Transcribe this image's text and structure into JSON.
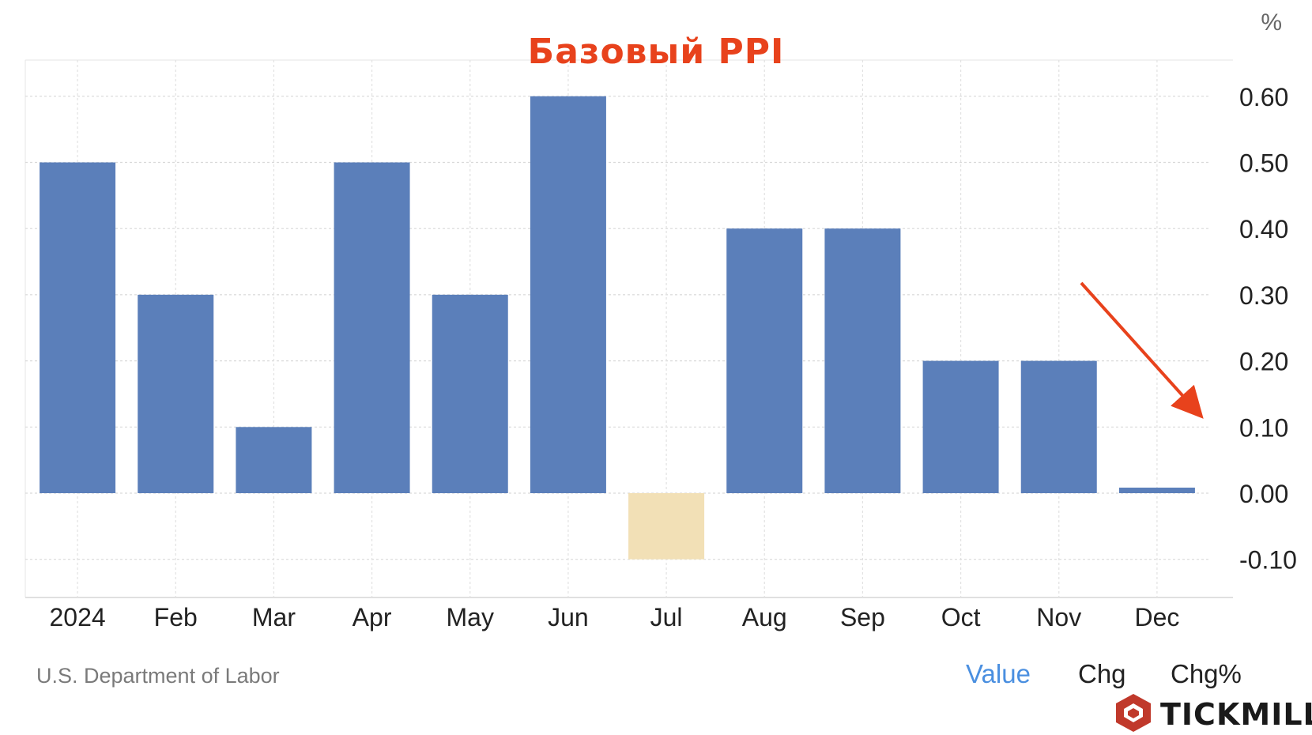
{
  "header": {
    "title": "Базовый PPI",
    "unit": "%"
  },
  "footer": {
    "source": "U.S. Department of Labor",
    "tabs": [
      {
        "label": "Value",
        "active": true
      },
      {
        "label": "Chg",
        "active": false
      },
      {
        "label": "Chg%",
        "active": false
      }
    ],
    "brand": "TICKMILL"
  },
  "colors": {
    "positive": "#5b7fba",
    "negative": "#f2e0b6",
    "title": "#e8421c",
    "arrow": "#e8421c",
    "active_tab": "#4a8fe0"
  },
  "chart_data": {
    "type": "bar",
    "title": "Базовый PPI",
    "unit": "%",
    "categories": [
      "2024",
      "Feb",
      "Mar",
      "Apr",
      "May",
      "Jun",
      "Jul",
      "Aug",
      "Sep",
      "Oct",
      "Nov",
      "Dec"
    ],
    "values": [
      0.5,
      0.3,
      0.1,
      0.5,
      0.3,
      0.6,
      -0.1,
      0.4,
      0.4,
      0.2,
      0.2,
      0.0
    ],
    "yticks": [
      "0.60",
      "0.50",
      "0.40",
      "0.30",
      "0.20",
      "0.10",
      "0.00",
      "-0.10"
    ],
    "ylim": [
      -0.16,
      0.66
    ],
    "grid": true,
    "axis_position": "right",
    "annotation": "downward-arrow"
  }
}
